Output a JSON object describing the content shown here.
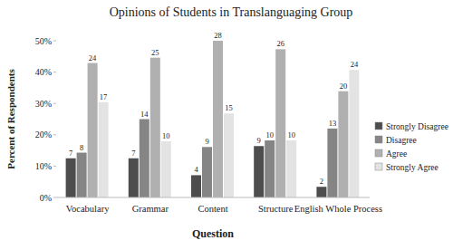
{
  "chart_data": {
    "type": "bar",
    "title": "Opinions of Students in Translanguaging Group",
    "x_label": "Question",
    "y_label": "Percent of Respondents",
    "categories": [
      "Vocabulary",
      "Grammar",
      "Content",
      "Structure",
      "English Whole Process"
    ],
    "series": [
      {
        "name": "Strongly Disagree",
        "color": "#4d4d4d",
        "values": [
          12.5,
          12.5,
          7.1,
          16.4,
          3.4
        ],
        "counts": [
          7,
          7,
          4,
          9,
          2
        ]
      },
      {
        "name": "Disagree",
        "color": "#858585",
        "values": [
          14.3,
          25.0,
          16.1,
          18.2,
          22.0
        ],
        "counts": [
          8,
          14,
          9,
          10,
          13
        ]
      },
      {
        "name": "Agree",
        "color": "#b0b0b0",
        "values": [
          42.9,
          44.6,
          50.0,
          47.3,
          33.9
        ],
        "counts": [
          24,
          25,
          28,
          26,
          20
        ]
      },
      {
        "name": "Strongly Agree",
        "color": "#e3e3e3",
        "values": [
          30.4,
          17.9,
          26.8,
          18.2,
          40.7
        ],
        "counts": [
          17,
          10,
          15,
          10,
          24
        ]
      }
    ],
    "ylim": [
      0,
      50
    ],
    "yticks": [
      {
        "value": 0,
        "label": "0%"
      },
      {
        "value": 10,
        "label": "10%"
      },
      {
        "value": 20,
        "label": "20%"
      },
      {
        "value": 30,
        "label": "30%"
      },
      {
        "value": 40,
        "label": "40%"
      },
      {
        "value": 50,
        "label": "50%"
      }
    ],
    "grid": false,
    "legend": "right"
  }
}
